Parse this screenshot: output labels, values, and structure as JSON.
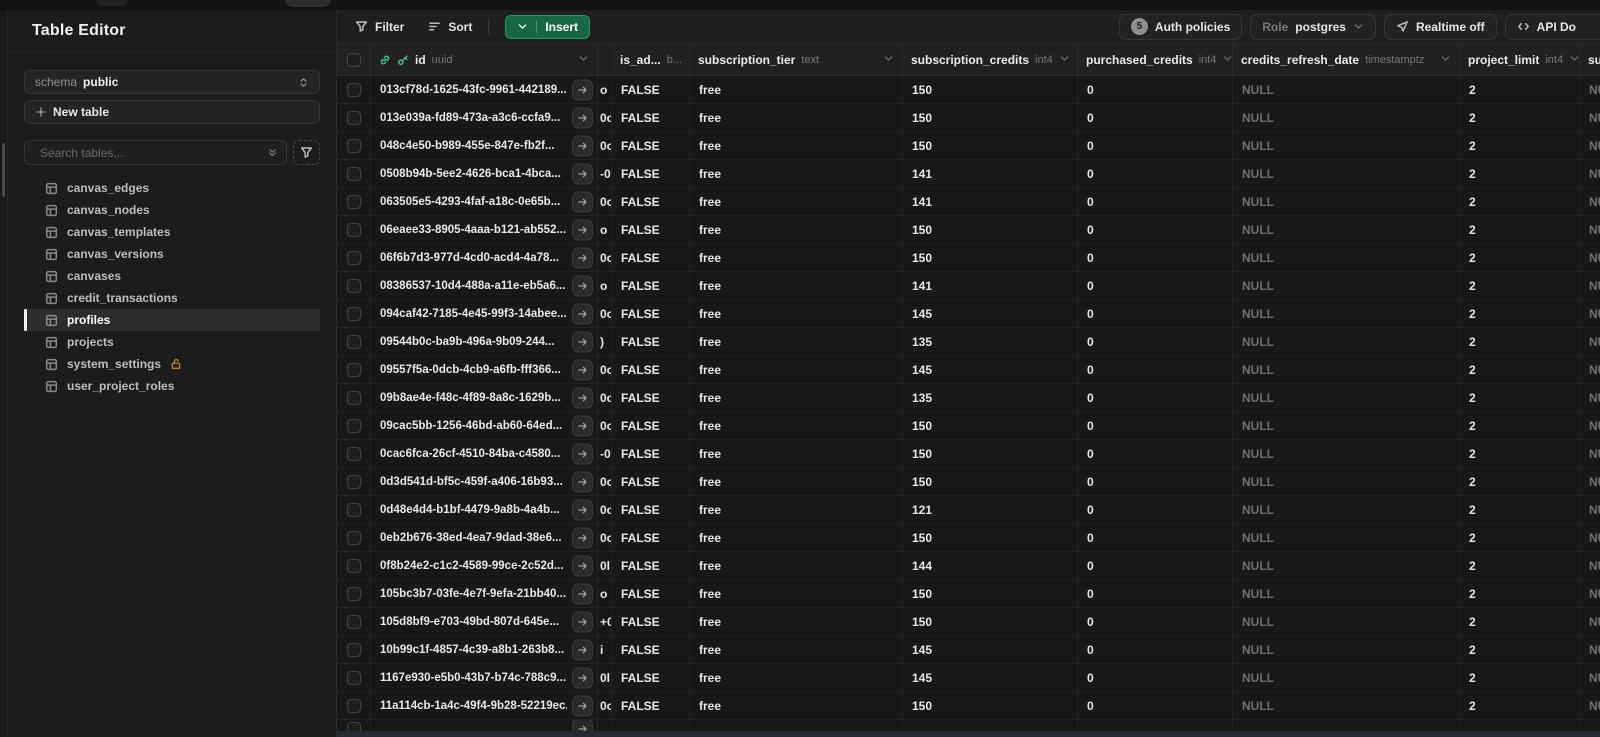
{
  "sidebar": {
    "title": "Table Editor",
    "schema_label": "schema",
    "schema_value": "public",
    "new_table_label": "New table",
    "search_placeholder": "Search tables...",
    "tables": [
      {
        "name": "canvas_edges",
        "selected": false,
        "locked": false
      },
      {
        "name": "canvas_nodes",
        "selected": false,
        "locked": false
      },
      {
        "name": "canvas_templates",
        "selected": false,
        "locked": false
      },
      {
        "name": "canvas_versions",
        "selected": false,
        "locked": false
      },
      {
        "name": "canvases",
        "selected": false,
        "locked": false
      },
      {
        "name": "credit_transactions",
        "selected": false,
        "locked": false
      },
      {
        "name": "profiles",
        "selected": true,
        "locked": false
      },
      {
        "name": "projects",
        "selected": false,
        "locked": false
      },
      {
        "name": "system_settings",
        "selected": false,
        "locked": true
      },
      {
        "name": "user_project_roles",
        "selected": false,
        "locked": false
      }
    ]
  },
  "toolbar": {
    "filter_label": "Filter",
    "sort_label": "Sort",
    "insert_label": "Insert",
    "auth_policies_count": "5",
    "auth_policies_label": "Auth policies",
    "role_label": "Role",
    "role_value": "postgres",
    "realtime_label": "Realtime off",
    "api_docs_label": "API Do"
  },
  "icons": {
    "filter": "funnel-icon",
    "sort": "sort-lines-icon",
    "insert": "chevron-down-icon",
    "realtime": "send-icon",
    "api_docs": "code-icon",
    "schema": "chevrons-up-down-icon",
    "search": "magnifier-icon",
    "id_primary": "key-icon",
    "id_link": "link-icon",
    "locked_table": "lock-open-icon",
    "table_item": "table-grid-icon",
    "expand_row": "arrow-right-icon"
  },
  "colors": {
    "accent_green": "#3ecf8e",
    "insert_button_bg": "#176944",
    "lock_amber": "#b8862b",
    "sidebar_bg": "#1c1c1c",
    "grid_bg": "#181818",
    "header_bg": "#212121",
    "null_text": "#6f6f6f"
  },
  "grid": {
    "columns": [
      {
        "kind": "checkbox",
        "name": "",
        "type": ""
      },
      {
        "kind": "id",
        "name": "id",
        "type": "uuid"
      },
      {
        "kind": "plain",
        "name": "",
        "type": ""
      },
      {
        "kind": "plain",
        "name": "is_ad...",
        "type": "b..."
      },
      {
        "kind": "plain",
        "name": "subscription_tier",
        "type": "text"
      },
      {
        "kind": "plain",
        "name": "subscription_credits",
        "type": "int4"
      },
      {
        "kind": "plain",
        "name": "purchased_credits",
        "type": "int4"
      },
      {
        "kind": "plain",
        "name": "credits_refresh_date",
        "type": "timestamptz"
      },
      {
        "kind": "plain",
        "name": "project_limit",
        "type": "int4"
      },
      {
        "kind": "plain",
        "name": "su",
        "type": ""
      }
    ],
    "rows": [
      {
        "id": "013cf78d-1625-43fc-9961-442189...",
        "frag": "o",
        "is_admin": "FALSE",
        "subscription_tier": "free",
        "subscription_credits": "150",
        "purchased_credits": "0",
        "credits_refresh_date": "NULL",
        "project_limit": "2",
        "overflow": "NULL"
      },
      {
        "id": "013e039a-fd89-473a-a3c6-ccfa9...",
        "frag": "0c",
        "is_admin": "FALSE",
        "subscription_tier": "free",
        "subscription_credits": "150",
        "purchased_credits": "0",
        "credits_refresh_date": "NULL",
        "project_limit": "2",
        "overflow": "NULL"
      },
      {
        "id": "048c4e50-b989-455e-847e-fb2f...",
        "frag": "0c",
        "is_admin": "FALSE",
        "subscription_tier": "free",
        "subscription_credits": "150",
        "purchased_credits": "0",
        "credits_refresh_date": "NULL",
        "project_limit": "2",
        "overflow": "NULL"
      },
      {
        "id": "0508b94b-5ee2-4626-bca1-4bca...",
        "frag": "-0",
        "is_admin": "FALSE",
        "subscription_tier": "free",
        "subscription_credits": "141",
        "purchased_credits": "0",
        "credits_refresh_date": "NULL",
        "project_limit": "2",
        "overflow": "NULL"
      },
      {
        "id": "063505e5-4293-4faf-a18c-0e65b...",
        "frag": "0c",
        "is_admin": "FALSE",
        "subscription_tier": "free",
        "subscription_credits": "141",
        "purchased_credits": "0",
        "credits_refresh_date": "NULL",
        "project_limit": "2",
        "overflow": "NULL"
      },
      {
        "id": "06eaee33-8905-4aaa-b121-ab552...",
        "frag": "o",
        "is_admin": "FALSE",
        "subscription_tier": "free",
        "subscription_credits": "150",
        "purchased_credits": "0",
        "credits_refresh_date": "NULL",
        "project_limit": "2",
        "overflow": "NULL"
      },
      {
        "id": "06f6b7d3-977d-4cd0-acd4-4a78...",
        "frag": "0c",
        "is_admin": "FALSE",
        "subscription_tier": "free",
        "subscription_credits": "150",
        "purchased_credits": "0",
        "credits_refresh_date": "NULL",
        "project_limit": "2",
        "overflow": "NULL"
      },
      {
        "id": "08386537-10d4-488a-a11e-eb5a6...",
        "frag": "o",
        "is_admin": "FALSE",
        "subscription_tier": "free",
        "subscription_credits": "141",
        "purchased_credits": "0",
        "credits_refresh_date": "NULL",
        "project_limit": "2",
        "overflow": "NULL"
      },
      {
        "id": "094caf42-7185-4e45-99f3-14abee...",
        "frag": "0c",
        "is_admin": "FALSE",
        "subscription_tier": "free",
        "subscription_credits": "145",
        "purchased_credits": "0",
        "credits_refresh_date": "NULL",
        "project_limit": "2",
        "overflow": "NULL"
      },
      {
        "id": "09544b0c-ba9b-496a-9b09-244...",
        "frag": ")",
        "is_admin": "FALSE",
        "subscription_tier": "free",
        "subscription_credits": "135",
        "purchased_credits": "0",
        "credits_refresh_date": "NULL",
        "project_limit": "2",
        "overflow": "NULL"
      },
      {
        "id": "09557f5a-0dcb-4cb9-a6fb-fff366...",
        "frag": "0c",
        "is_admin": "FALSE",
        "subscription_tier": "free",
        "subscription_credits": "145",
        "purchased_credits": "0",
        "credits_refresh_date": "NULL",
        "project_limit": "2",
        "overflow": "NULL"
      },
      {
        "id": "09b8ae4e-f48c-4f89-8a8c-1629b...",
        "frag": "0c",
        "is_admin": "FALSE",
        "subscription_tier": "free",
        "subscription_credits": "135",
        "purchased_credits": "0",
        "credits_refresh_date": "NULL",
        "project_limit": "2",
        "overflow": "NULL"
      },
      {
        "id": "09cac5bb-1256-46bd-ab60-64ed...",
        "frag": "0c",
        "is_admin": "FALSE",
        "subscription_tier": "free",
        "subscription_credits": "150",
        "purchased_credits": "0",
        "credits_refresh_date": "NULL",
        "project_limit": "2",
        "overflow": "NULL"
      },
      {
        "id": "0cac6fca-26cf-4510-84ba-c4580...",
        "frag": "-0",
        "is_admin": "FALSE",
        "subscription_tier": "free",
        "subscription_credits": "150",
        "purchased_credits": "0",
        "credits_refresh_date": "NULL",
        "project_limit": "2",
        "overflow": "NULL"
      },
      {
        "id": "0d3d541d-bf5c-459f-a406-16b93...",
        "frag": "0c",
        "is_admin": "FALSE",
        "subscription_tier": "free",
        "subscription_credits": "150",
        "purchased_credits": "0",
        "credits_refresh_date": "NULL",
        "project_limit": "2",
        "overflow": "NULL"
      },
      {
        "id": "0d48e4d4-b1bf-4479-9a8b-4a4b...",
        "frag": "0c",
        "is_admin": "FALSE",
        "subscription_tier": "free",
        "subscription_credits": "121",
        "purchased_credits": "0",
        "credits_refresh_date": "NULL",
        "project_limit": "2",
        "overflow": "NULL"
      },
      {
        "id": "0eb2b676-38ed-4ea7-9dad-38e6...",
        "frag": "0c",
        "is_admin": "FALSE",
        "subscription_tier": "free",
        "subscription_credits": "150",
        "purchased_credits": "0",
        "credits_refresh_date": "NULL",
        "project_limit": "2",
        "overflow": "NULL"
      },
      {
        "id": "0f8b24e2-c1c2-4589-99ce-2c52d...",
        "frag": "0l",
        "is_admin": "FALSE",
        "subscription_tier": "free",
        "subscription_credits": "144",
        "purchased_credits": "0",
        "credits_refresh_date": "NULL",
        "project_limit": "2",
        "overflow": "NULL"
      },
      {
        "id": "105bc3b7-03fe-4e7f-9efa-21bb40...",
        "frag": "o",
        "is_admin": "FALSE",
        "subscription_tier": "free",
        "subscription_credits": "150",
        "purchased_credits": "0",
        "credits_refresh_date": "NULL",
        "project_limit": "2",
        "overflow": "NULL"
      },
      {
        "id": "105d8bf9-e703-49bd-807d-645e...",
        "frag": "+0",
        "is_admin": "FALSE",
        "subscription_tier": "free",
        "subscription_credits": "150",
        "purchased_credits": "0",
        "credits_refresh_date": "NULL",
        "project_limit": "2",
        "overflow": "NULL"
      },
      {
        "id": "10b99c1f-4857-4c39-a8b1-263b8...",
        "frag": "i",
        "is_admin": "FALSE",
        "subscription_tier": "free",
        "subscription_credits": "145",
        "purchased_credits": "0",
        "credits_refresh_date": "NULL",
        "project_limit": "2",
        "overflow": "NULL"
      },
      {
        "id": "1167e930-e5b0-43b7-b74c-788c9...",
        "frag": "0l",
        "is_admin": "FALSE",
        "subscription_tier": "free",
        "subscription_credits": "145",
        "purchased_credits": "0",
        "credits_refresh_date": "NULL",
        "project_limit": "2",
        "overflow": "NULL"
      },
      {
        "id": "11a114cb-1a4c-49f4-9b28-52219ec...",
        "frag": "0c",
        "is_admin": "FALSE",
        "subscription_tier": "free",
        "subscription_credits": "150",
        "purchased_credits": "0",
        "credits_refresh_date": "NULL",
        "project_limit": "2",
        "overflow": "NULL"
      }
    ]
  }
}
